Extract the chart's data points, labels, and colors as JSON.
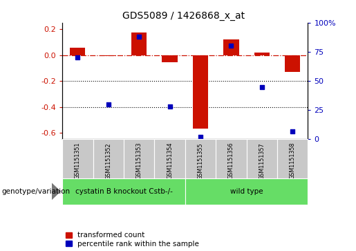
{
  "title": "GDS5089 / 1426868_x_at",
  "samples": [
    "GSM1151351",
    "GSM1151352",
    "GSM1151353",
    "GSM1151354",
    "GSM1151355",
    "GSM1151356",
    "GSM1151357",
    "GSM1151358"
  ],
  "transformed_count": [
    0.055,
    -0.01,
    0.175,
    -0.055,
    -0.57,
    0.12,
    0.02,
    -0.13
  ],
  "percentile_rank": [
    70,
    30,
    88,
    28,
    2,
    80,
    45,
    7
  ],
  "bar_color": "#cc1100",
  "dot_color": "#0000bb",
  "ylim_left": [
    -0.65,
    0.25
  ],
  "ylim_right": [
    0,
    100
  ],
  "yticks_left": [
    0.2,
    0.0,
    -0.2,
    -0.4,
    -0.6
  ],
  "yticks_right": [
    100,
    75,
    50,
    25,
    0
  ],
  "dotted_lines": [
    -0.2,
    -0.4
  ],
  "groups": [
    {
      "label": "cystatin B knockout Cstb-/-",
      "start": 0,
      "end": 4
    },
    {
      "label": "wild type",
      "start": 4,
      "end": 8
    }
  ],
  "group_row_label": "genotype/variation",
  "legend_red": "transformed count",
  "legend_blue": "percentile rank within the sample",
  "bar_width": 0.5,
  "background_color": "#ffffff",
  "tick_label_area_color": "#c8c8c8",
  "group_label_area_color": "#66dd66"
}
